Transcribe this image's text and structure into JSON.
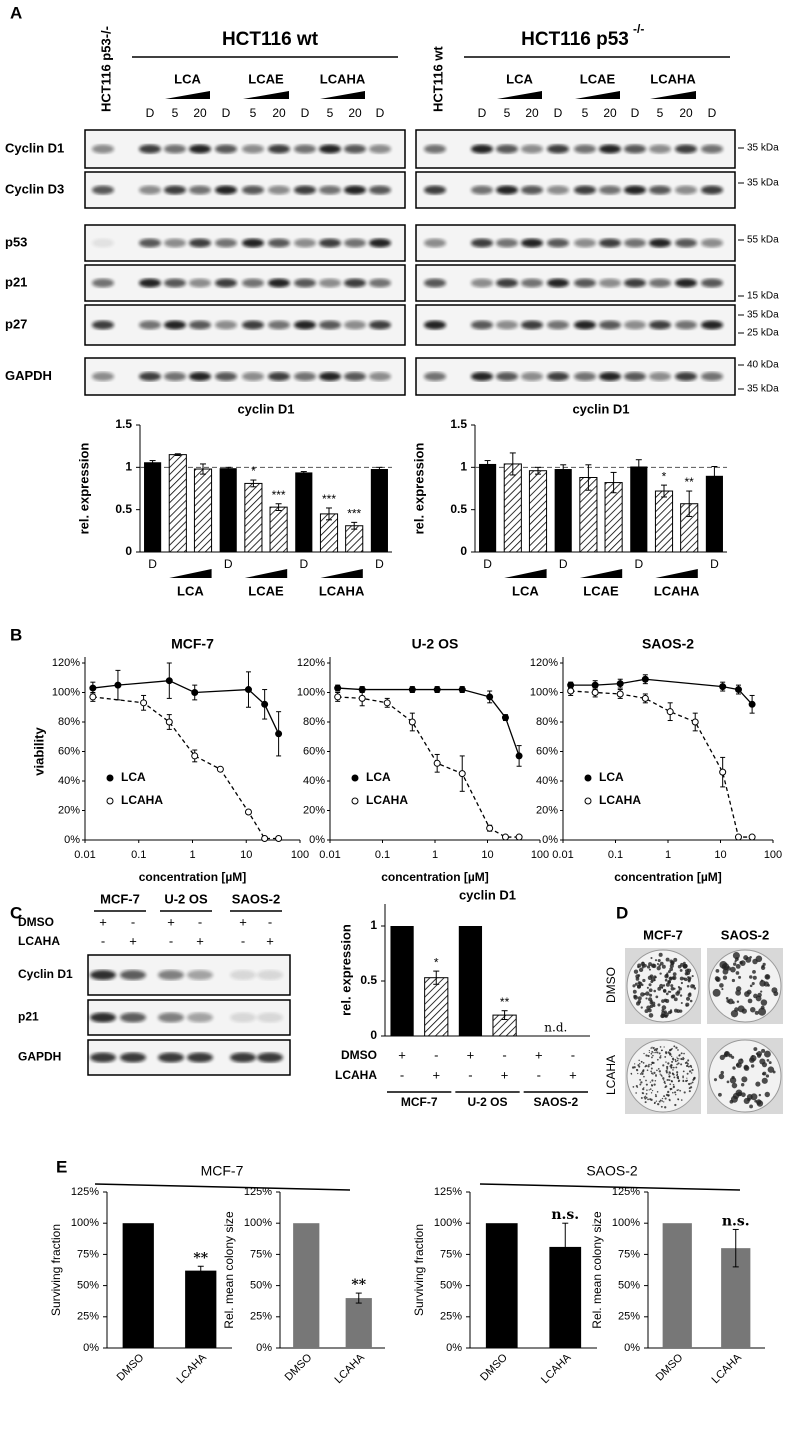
{
  "panel_labels": [
    "A",
    "B",
    "C",
    "D",
    "E"
  ],
  "blot_a": {
    "rows": [
      "Cyclin D1",
      "Cyclin D3",
      "p53",
      "p21",
      "p27",
      "GAPDH"
    ],
    "markers": [
      [
        "35 kDa"
      ],
      [
        "35 kDa"
      ],
      [
        "55 kDa"
      ],
      [
        "15 kDa"
      ],
      [
        "35 kDa",
        "25 kDa"
      ],
      [
        "40 kDa",
        "35 kDa"
      ]
    ],
    "left": {
      "control_lane": "HCT116 p53-/-",
      "title": "HCT116 wt",
      "groups": [
        "LCA",
        "LCAE",
        "LCAHA"
      ],
      "lanes": [
        "D",
        "5",
        "20",
        "D",
        "5",
        "20",
        "D",
        "5",
        "20",
        "D"
      ]
    },
    "right": {
      "control_lane": "HCT116 wt",
      "title": "HCT116 p53",
      "title_superscript": "-/-",
      "groups": [
        "LCA",
        "LCAE",
        "LCAHA"
      ],
      "lanes": [
        "D",
        "5",
        "20",
        "D",
        "5",
        "20",
        "D",
        "5",
        "20",
        "D"
      ]
    }
  },
  "blot_c": {
    "cell_lines": [
      "MCF-7",
      "U-2 OS",
      "SAOS-2"
    ],
    "treatments": [
      {
        "label": "DMSO",
        "signs": [
          "+",
          "-",
          "+",
          "-",
          "+",
          "-"
        ]
      },
      {
        "label": "LCAHA",
        "signs": [
          "-",
          "+",
          "-",
          "+",
          "-",
          "+"
        ]
      }
    ],
    "rows": [
      "Cyclin D1",
      "p21",
      "GAPDH"
    ]
  },
  "colonies_d": {
    "columns": [
      "MCF-7",
      "SAOS-2"
    ],
    "rows": [
      "DMSO",
      "LCAHA"
    ]
  },
  "panel_e_titles": [
    "MCF-7",
    "SAOS-2"
  ],
  "chart_data": [
    {
      "type": "bar",
      "title": "cyclin D1",
      "y_label": "rel. expression",
      "categories": [
        "D",
        null,
        null,
        "D",
        null,
        null,
        "D",
        null,
        null,
        "D"
      ],
      "groups": [
        "LCA",
        "LCAE",
        "LCAHA"
      ],
      "values": [
        1.06,
        1.15,
        0.98,
        0.99,
        0.81,
        0.53,
        0.94,
        0.45,
        0.31,
        0.98
      ],
      "errors": [
        0.02,
        0.01,
        0.06,
        0.01,
        0.04,
        0.04,
        0.01,
        0.07,
        0.04,
        0.02
      ],
      "annotations": [
        null,
        null,
        null,
        null,
        "*",
        "***",
        null,
        "***",
        "***",
        null
      ],
      "bar_fill": [
        "solid",
        "hatched",
        "hatched",
        "solid",
        "hatched",
        "hatched",
        "solid",
        "hatched",
        "hatched",
        "solid"
      ],
      "color": "#000000",
      "ylim": [
        0,
        1.5
      ],
      "yticks": [
        0,
        0.5,
        1,
        1.5
      ],
      "reference_line": 1
    },
    {
      "type": "bar",
      "title": "cyclin D1",
      "y_label": "rel. expression",
      "categories": [
        "D",
        null,
        null,
        "D",
        null,
        null,
        "D",
        null,
        null,
        "D"
      ],
      "groups": [
        "LCA",
        "LCAE",
        "LCAHA"
      ],
      "values": [
        1.04,
        1.04,
        0.96,
        0.98,
        0.88,
        0.82,
        1.01,
        0.72,
        0.57,
        0.9
      ],
      "errors": [
        0.04,
        0.13,
        0.04,
        0.05,
        0.15,
        0.12,
        0.08,
        0.07,
        0.15,
        0.11
      ],
      "annotations": [
        null,
        null,
        null,
        null,
        null,
        null,
        null,
        "*",
        "**",
        null
      ],
      "bar_fill": [
        "solid",
        "hatched",
        "hatched",
        "solid",
        "hatched",
        "hatched",
        "solid",
        "hatched",
        "hatched",
        "solid"
      ],
      "color": "#000000",
      "ylim": [
        0,
        1.5
      ],
      "yticks": [
        0,
        0.5,
        1,
        1.5
      ],
      "reference_line": 1
    },
    {
      "type": "line",
      "title": "MCF-7",
      "y_label": "viability",
      "x_label": "concentration [µM]",
      "log_x": true,
      "xlim": [
        0.01,
        100
      ],
      "xticks": [
        0.01,
        0.1,
        1,
        10,
        100
      ],
      "ylim": [
        0,
        120
      ],
      "yticks": [
        {
          "value": 0,
          "label": "0%"
        },
        {
          "value": 20,
          "label": "20%"
        },
        {
          "value": 40,
          "label": "40%"
        },
        {
          "value": 60,
          "label": "60%"
        },
        {
          "value": 80,
          "label": "80%"
        },
        {
          "value": 100,
          "label": "100%"
        },
        {
          "value": 120,
          "label": "120%"
        }
      ],
      "series": [
        {
          "name": "LCA",
          "marker": "filled",
          "line": "solid",
          "x": [
            0.014,
            0.041,
            0.37,
            1.1,
            11,
            22,
            40
          ],
          "values": [
            103,
            105,
            108,
            100,
            102,
            92,
            72
          ],
          "errors": [
            4,
            10,
            12,
            5,
            12,
            10,
            15
          ]
        },
        {
          "name": "LCAHA",
          "marker": "open",
          "line": "dashed",
          "x": [
            0.014,
            0.123,
            0.37,
            1.1,
            3.3,
            11,
            22,
            40
          ],
          "values": [
            97,
            93,
            80,
            57,
            48,
            19,
            1,
            1
          ],
          "errors": [
            3,
            5,
            5,
            4,
            1,
            1,
            1,
            1
          ]
        }
      ]
    },
    {
      "type": "line",
      "title": "U-2 OS",
      "x_label": "concentration [µM]",
      "log_x": true,
      "xlim": [
        0.01,
        100
      ],
      "xticks": [
        0.01,
        0.1,
        1,
        10,
        100
      ],
      "ylim": [
        0,
        120
      ],
      "yticks": [
        {
          "value": 0,
          "label": "0%"
        },
        {
          "value": 20,
          "label": "20%"
        },
        {
          "value": 40,
          "label": "40%"
        },
        {
          "value": 60,
          "label": "60%"
        },
        {
          "value": 80,
          "label": "80%"
        },
        {
          "value": 100,
          "label": "100%"
        },
        {
          "value": 120,
          "label": "120%"
        }
      ],
      "series": [
        {
          "name": "LCA",
          "marker": "filled",
          "line": "solid",
          "x": [
            0.014,
            0.041,
            0.37,
            1.1,
            3.3,
            11,
            22,
            40
          ],
          "values": [
            103,
            102,
            102,
            102,
            102,
            97,
            83,
            57
          ],
          "errors": [
            2,
            2,
            2,
            2,
            2,
            4,
            2,
            7
          ]
        },
        {
          "name": "LCAHA",
          "marker": "open",
          "line": "dashed",
          "x": [
            0.014,
            0.041,
            0.123,
            0.37,
            1.1,
            3.3,
            11,
            22,
            40
          ],
          "values": [
            97,
            96,
            93,
            80,
            52,
            45,
            8,
            2,
            2
          ],
          "errors": [
            3,
            5,
            3,
            6,
            6,
            12,
            2,
            1,
            1
          ]
        }
      ]
    },
    {
      "type": "line",
      "title": "SAOS-2",
      "x_label": "concentration [µM]",
      "log_x": true,
      "xlim": [
        0.01,
        100
      ],
      "xticks": [
        0.01,
        0.1,
        1,
        10,
        100
      ],
      "ylim": [
        0,
        120
      ],
      "yticks": [
        {
          "value": 0,
          "label": "0%"
        },
        {
          "value": 20,
          "label": "20%"
        },
        {
          "value": 40,
          "label": "40%"
        },
        {
          "value": 60,
          "label": "60%"
        },
        {
          "value": 80,
          "label": "80%"
        },
        {
          "value": 100,
          "label": "100%"
        },
        {
          "value": 120,
          "label": "120%"
        }
      ],
      "series": [
        {
          "name": "LCA",
          "marker": "filled",
          "line": "solid",
          "x": [
            0.014,
            0.041,
            0.123,
            0.37,
            11,
            22,
            40
          ],
          "values": [
            105,
            105,
            106,
            109,
            104,
            102,
            92
          ],
          "errors": [
            2,
            3,
            3,
            3,
            3,
            3,
            6
          ]
        },
        {
          "name": "LCAHA",
          "marker": "open",
          "line": "dashed",
          "x": [
            0.014,
            0.041,
            0.123,
            0.37,
            1.1,
            3.3,
            11,
            22,
            40
          ],
          "values": [
            101,
            100,
            99,
            96,
            87,
            80,
            46,
            2,
            2
          ],
          "errors": [
            3,
            3,
            3,
            3,
            6,
            6,
            10,
            1,
            1
          ]
        }
      ]
    },
    {
      "type": "bar",
      "title": "cyclin D1",
      "y_label": "rel. expression",
      "groups": [
        "MCF-7",
        "U-2 OS",
        "SAOS-2"
      ],
      "rows": [
        {
          "label": "DMSO",
          "signs": [
            "+",
            "-",
            "+",
            "-",
            "+",
            "-"
          ]
        },
        {
          "label": "LCAHA",
          "signs": [
            "-",
            "+",
            "-",
            "+",
            "-",
            "+"
          ]
        }
      ],
      "values": [
        1,
        0.53,
        1,
        0.19,
        null,
        null
      ],
      "errors": [
        null,
        0.06,
        null,
        0.04,
        null,
        null
      ],
      "annotations": [
        null,
        "*",
        null,
        "**",
        "n.d.",
        null
      ],
      "bar_fill": [
        "solid",
        "hatched",
        "solid",
        "hatched",
        "solid",
        "hatched"
      ],
      "color": "#000000",
      "ylim": [
        0,
        1.2
      ],
      "yticks": [
        0,
        0.5,
        1
      ]
    },
    {
      "type": "bar",
      "y_label": "Surviving fraction",
      "categories": [
        "DMSO",
        "LCAHA"
      ],
      "values": [
        100,
        62
      ],
      "errors": [
        null,
        3.5
      ],
      "annotations": [
        null,
        "**"
      ],
      "colors": [
        "#000000",
        "#000000"
      ],
      "ylim": [
        0,
        125
      ],
      "yticks": [
        {
          "value": 0,
          "label": "0%"
        },
        {
          "value": 25,
          "label": "25%"
        },
        {
          "value": 50,
          "label": "50%"
        },
        {
          "value": 75,
          "label": "75%"
        },
        {
          "value": 100,
          "label": "100%"
        },
        {
          "value": 125,
          "label": "125%"
        }
      ]
    },
    {
      "type": "bar",
      "y_label": "Rel. mean colony size",
      "categories": [
        "DMSO",
        "LCAHA"
      ],
      "values": [
        100,
        40
      ],
      "errors": [
        null,
        4
      ],
      "annotations": [
        null,
        "**"
      ],
      "colors": [
        "#777777",
        "#777777"
      ],
      "ylim": [
        0,
        125
      ],
      "yticks": [
        {
          "value": 0,
          "label": "0%"
        },
        {
          "value": 25,
          "label": "25%"
        },
        {
          "value": 50,
          "label": "50%"
        },
        {
          "value": 75,
          "label": "75%"
        },
        {
          "value": 100,
          "label": "100%"
        },
        {
          "value": 125,
          "label": "125%"
        }
      ]
    },
    {
      "type": "bar",
      "y_label": "Surviving fraction",
      "categories": [
        "DMSO",
        "LCAHA"
      ],
      "values": [
        100,
        81
      ],
      "errors": [
        null,
        19
      ],
      "annotations": [
        null,
        "n.s."
      ],
      "colors": [
        "#000000",
        "#000000"
      ],
      "ylim": [
        0,
        125
      ],
      "yticks": [
        {
          "value": 0,
          "label": "0%"
        },
        {
          "value": 25,
          "label": "25%"
        },
        {
          "value": 50,
          "label": "50%"
        },
        {
          "value": 75,
          "label": "75%"
        },
        {
          "value": 100,
          "label": "100%"
        },
        {
          "value": 125,
          "label": "125%"
        }
      ]
    },
    {
      "type": "bar",
      "y_label": "Rel. mean colony size",
      "categories": [
        "DMSO",
        "LCAHA"
      ],
      "values": [
        100,
        80
      ],
      "errors": [
        null,
        15
      ],
      "annotations": [
        null,
        "n.s."
      ],
      "colors": [
        "#777777",
        "#777777"
      ],
      "ylim": [
        0,
        125
      ],
      "yticks": [
        {
          "value": 0,
          "label": "0%"
        },
        {
          "value": 25,
          "label": "25%"
        },
        {
          "value": 50,
          "label": "50%"
        },
        {
          "value": 75,
          "label": "75%"
        },
        {
          "value": 100,
          "label": "100%"
        },
        {
          "value": 125,
          "label": "125%"
        }
      ]
    }
  ]
}
